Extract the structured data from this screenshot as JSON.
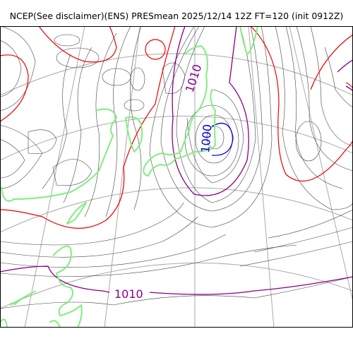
{
  "title": "NCEP(See disclaimer)(ENS) PRESmean 2025/12/14 12Z FT=120 (init 0912Z)",
  "contour_labels": {
    "c1010_north": "1010",
    "c1000": "1000",
    "c1010_south": "1010"
  },
  "colors": {
    "isobar_minor": "#404040",
    "isobar_1000": "#0000dd",
    "isobar_1010": "#880088",
    "isobar_1020": "#ee0000",
    "coastline": "#80ee80",
    "graticule": "#aaaaaa"
  }
}
